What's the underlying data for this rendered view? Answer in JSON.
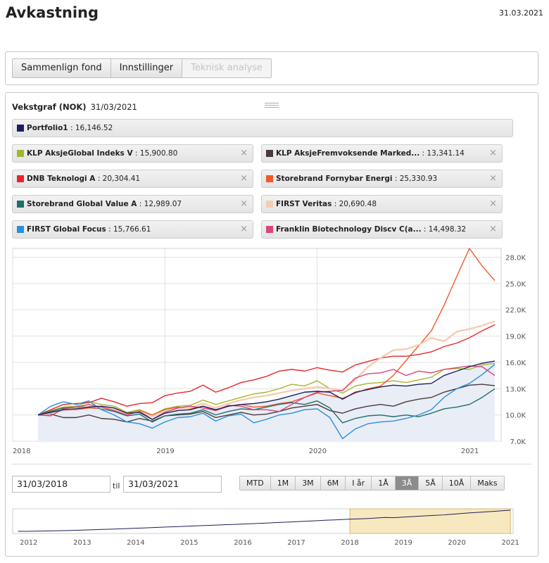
{
  "page": {
    "title": "Avkastning",
    "date": "31.03.2021"
  },
  "tabs": [
    {
      "label": "Sammenlign fond",
      "disabled": false
    },
    {
      "label": "Innstillinger",
      "disabled": false
    },
    {
      "label": "Teknisk analyse",
      "disabled": true
    }
  ],
  "chart_header": {
    "title": "Vekstgraf (NOK)",
    "date": "31/03/2021"
  },
  "portfolio": {
    "name": "Portfolio1",
    "value": ": 16,146.52",
    "color": "#1a1f5c"
  },
  "funds": [
    {
      "name": "KLP AksjeGlobal Indeks V",
      "value": ": 15,900.80",
      "color": "#a3b72a"
    },
    {
      "name": "KLP AksjeFremvoksende Marked...",
      "value": ": 13,341.14",
      "color": "#4a3a3e"
    },
    {
      "name": "DNB Teknologi A",
      "value": ": 20,304.41",
      "color": "#e8262a"
    },
    {
      "name": "Storebrand Fornybar Energi",
      "value": ": 25,330.93",
      "color": "#ef5a28"
    },
    {
      "name": "Storebrand Global Value A",
      "value": ": 12,989.07",
      "color": "#1f6e68"
    },
    {
      "name": "FIRST Veritas",
      "value": ": 20,690.48",
      "color": "#f3cdb4"
    },
    {
      "name": "FIRST Global Focus",
      "value": ": 15,766.61",
      "color": "#2a8fdc"
    },
    {
      "name": "Franklin Biotechnology Discv C(a...",
      "value": ": 14,498.32",
      "color": "#d6457c"
    }
  ],
  "close_glyph": "×",
  "chart_data": {
    "type": "line",
    "x_ticks": [
      "2018",
      "2019",
      "2020",
      "2021"
    ],
    "y_ticks": [
      "7.0K",
      "10.0K",
      "13.0K",
      "16.0K",
      "19.0K",
      "22.0K",
      "25.0K",
      "28.0K"
    ],
    "ylim": [
      7000,
      29000
    ],
    "x": [
      "2018-03",
      "2018-04",
      "2018-05",
      "2018-06",
      "2018-07",
      "2018-08",
      "2018-09",
      "2018-10",
      "2018-11",
      "2018-12",
      "2019-01",
      "2019-02",
      "2019-03",
      "2019-04",
      "2019-05",
      "2019-06",
      "2019-07",
      "2019-08",
      "2019-09",
      "2019-10",
      "2019-11",
      "2019-12",
      "2020-01",
      "2020-02",
      "2020-03",
      "2020-04",
      "2020-05",
      "2020-06",
      "2020-07",
      "2020-08",
      "2020-09",
      "2020-10",
      "2020-11",
      "2020-12",
      "2021-01",
      "2021-02",
      "2021-03"
    ],
    "series": [
      {
        "name": "Portfolio1",
        "values": [
          10000,
          10300,
          10600,
          10700,
          10900,
          11000,
          10800,
          10200,
          10300,
          9500,
          10200,
          10500,
          10600,
          11000,
          10600,
          11000,
          11200,
          11300,
          11500,
          11800,
          12200,
          12600,
          12700,
          12600,
          11800,
          12600,
          12900,
          13200,
          13400,
          13300,
          13500,
          13600,
          14500,
          15000,
          15500,
          15900,
          16150
        ]
      },
      {
        "name": "KLP AksjeGlobal Indeks V",
        "values": [
          10000,
          10500,
          10900,
          11000,
          11500,
          11200,
          11000,
          10300,
          10600,
          10000,
          10700,
          11000,
          11100,
          11700,
          11200,
          11600,
          12000,
          12400,
          12600,
          13000,
          13500,
          13300,
          13900,
          13000,
          12500,
          13300,
          13600,
          13700,
          13900,
          13700,
          14000,
          14300,
          15200,
          15300,
          15200,
          15700,
          15900
        ]
      },
      {
        "name": "KLP AksjeFremvoksende Marked...",
        "values": [
          10000,
          10100,
          9700,
          9700,
          10000,
          9600,
          9500,
          9200,
          9600,
          9300,
          9900,
          10000,
          10100,
          10400,
          9700,
          10000,
          10300,
          10000,
          10100,
          10400,
          10800,
          11000,
          11200,
          10500,
          10200,
          10700,
          11000,
          11200,
          11000,
          11500,
          11800,
          12000,
          12600,
          13000,
          13400,
          13500,
          13340
        ]
      },
      {
        "name": "DNB Teknologi A",
        "values": [
          10000,
          10600,
          11200,
          11300,
          11400,
          11900,
          11500,
          11000,
          11300,
          11400,
          12200,
          12500,
          12700,
          13400,
          12600,
          13100,
          13700,
          14000,
          14400,
          15000,
          15200,
          15000,
          15400,
          15100,
          14900,
          15700,
          16100,
          16500,
          16700,
          16700,
          16900,
          17200,
          17800,
          18200,
          18800,
          19600,
          20300
        ]
      },
      {
        "name": "Storebrand Fornybar Energi",
        "values": [
          10000,
          10300,
          10500,
          10600,
          10800,
          10700,
          10600,
          10200,
          10500,
          10000,
          10600,
          10900,
          10700,
          11000,
          10500,
          11000,
          11200,
          10900,
          11000,
          11300,
          11500,
          12000,
          12500,
          12200,
          11900,
          12500,
          13000,
          13300,
          14500,
          16200,
          17900,
          19600,
          22500,
          25800,
          29000,
          27000,
          25330
        ]
      },
      {
        "name": "Storebrand Global Value A",
        "values": [
          10000,
          10400,
          10800,
          10900,
          11000,
          10700,
          10400,
          9900,
          10100,
          9200,
          9900,
          10100,
          10200,
          10600,
          10000,
          10400,
          10700,
          10600,
          10900,
          11200,
          11400,
          11200,
          11600,
          10800,
          9100,
          9600,
          9900,
          10000,
          9800,
          10000,
          9800,
          10200,
          10700,
          10900,
          11200,
          12000,
          12990
        ]
      },
      {
        "name": "FIRST Veritas",
        "values": [
          10000,
          10200,
          10500,
          10700,
          11000,
          10800,
          10600,
          10100,
          10400,
          9800,
          10400,
          10700,
          10800,
          11300,
          10800,
          11300,
          11700,
          12000,
          12200,
          12500,
          12800,
          13000,
          13200,
          13000,
          12800,
          14000,
          15500,
          16500,
          17400,
          17500,
          18000,
          18800,
          18400,
          19500,
          19800,
          20200,
          20690
        ]
      },
      {
        "name": "FIRST Global Focus",
        "values": [
          10000,
          11000,
          11500,
          11200,
          11600,
          10600,
          10000,
          9200,
          9000,
          8500,
          9200,
          9700,
          9800,
          10200,
          9300,
          9900,
          10100,
          9100,
          9500,
          10000,
          10200,
          10600,
          10700,
          9700,
          7300,
          8400,
          9000,
          9200,
          9300,
          9600,
          10000,
          10600,
          12000,
          13000,
          13600,
          14600,
          15770
        ]
      },
      {
        "name": "Franklin Biotechnology Discv C(a...",
        "values": [
          10000,
          9900,
          10700,
          10900,
          11200,
          10900,
          10500,
          10000,
          10400,
          9500,
          10300,
          10800,
          11000,
          10800,
          10500,
          11100,
          11000,
          10600,
          10600,
          10400,
          11200,
          12000,
          12600,
          12700,
          12800,
          14200,
          14700,
          14800,
          15200,
          14500,
          15000,
          14800,
          15200,
          15400,
          15600,
          15500,
          14500
        ]
      }
    ]
  },
  "range": {
    "from": "31/03/2018",
    "til_label": "til",
    "to": "31/03/2021"
  },
  "periods": [
    {
      "label": "MTD",
      "active": false
    },
    {
      "label": "1M",
      "active": false
    },
    {
      "label": "3M",
      "active": false
    },
    {
      "label": "6M",
      "active": false
    },
    {
      "label": "I år",
      "active": false
    },
    {
      "label": "1Å",
      "active": false
    },
    {
      "label": "3Å",
      "active": true
    },
    {
      "label": "5Å",
      "active": false
    },
    {
      "label": "10Å",
      "active": false
    },
    {
      "label": "Maks",
      "active": false
    }
  ],
  "navigator": {
    "years": [
      "2012",
      "2013",
      "2014",
      "2015",
      "2016",
      "2017",
      "2018",
      "2019",
      "2020",
      "2021"
    ],
    "selection": [
      "2018",
      "2021"
    ],
    "values": [
      10000,
      9950,
      10050,
      10150,
      10250,
      10400,
      10550,
      10700,
      10900,
      11100,
      11350,
      11500,
      11700,
      11950,
      12200,
      12350,
      12600,
      12850,
      13100,
      13300,
      13550,
      13800,
      14050,
      14300,
      14500,
      14750,
      15000,
      15250,
      15500,
      15750,
      16000,
      16300,
      16550,
      16800,
      17100,
      17400,
      17700,
      18000,
      18200,
      18500,
      18800,
      19000,
      19250,
      19600,
      20000,
      19800,
      20200,
      20500,
      20900,
      21200,
      21500,
      21800,
      22300,
      22800,
      23200,
      23600,
      24000,
      24400,
      24800,
      25200
    ]
  },
  "colors": {
    "navigator_selection": "#f8e8c0",
    "navigator_selection_border": "#d7b572",
    "navigator_line": "#1a1f5c",
    "area_fill": "#e9edf5",
    "grid": "#e2e2e2"
  }
}
